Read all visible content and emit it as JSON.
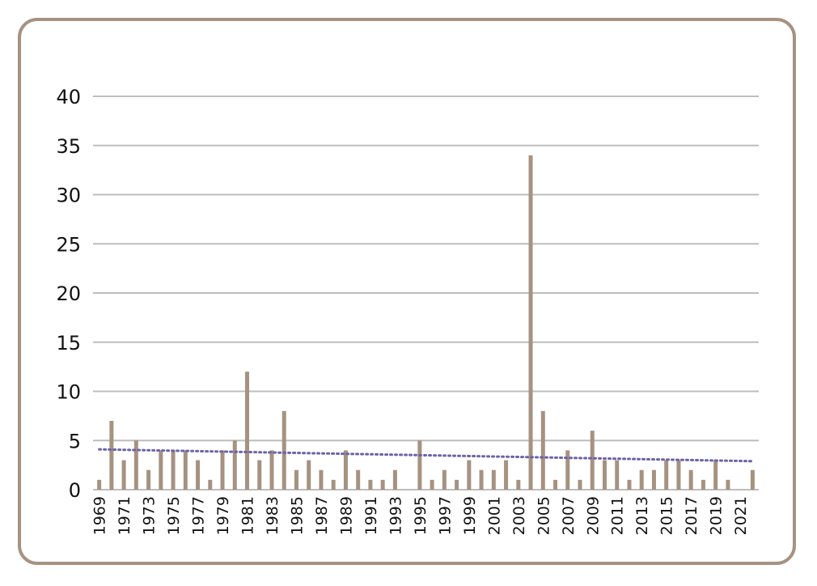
{
  "chart_data": {
    "type": "bar",
    "title": "",
    "xlabel": "",
    "ylabel": "",
    "ylim": [
      0,
      40
    ],
    "yticks": [
      0,
      5,
      10,
      15,
      20,
      25,
      30,
      35,
      40
    ],
    "grid": true,
    "legend": "none",
    "categories": [
      "1969",
      "1970",
      "1971",
      "1972",
      "1973",
      "1974",
      "1975",
      "1976",
      "1977",
      "1978",
      "1979",
      "1980",
      "1981",
      "1982",
      "1983",
      "1984",
      "1985",
      "1986",
      "1987",
      "1988",
      "1989",
      "1990",
      "1991",
      "1992",
      "1993",
      "1994",
      "1995",
      "1996",
      "1997",
      "1998",
      "1999",
      "2000",
      "2001",
      "2002",
      "2003",
      "2004",
      "2005",
      "2006",
      "2007",
      "2008",
      "2009",
      "2010",
      "2011",
      "2012",
      "2013",
      "2014",
      "2015",
      "2016",
      "2017",
      "2018",
      "2019",
      "2020",
      "2021",
      "2022"
    ],
    "x_tick_labels": [
      "1969",
      "1971",
      "1973",
      "1975",
      "1977",
      "1979",
      "1981",
      "1983",
      "1985",
      "1987",
      "1989",
      "1991",
      "1993",
      "1995",
      "1997",
      "1999",
      "2001",
      "2003",
      "2005",
      "2007",
      "2009",
      "2011",
      "2013",
      "2015",
      "2017",
      "2019",
      "2021"
    ],
    "values": [
      1,
      7,
      3,
      5,
      2,
      4,
      4,
      4,
      3,
      1,
      4,
      5,
      12,
      3,
      4,
      8,
      2,
      3,
      2,
      1,
      4,
      2,
      1,
      1,
      2,
      0,
      5,
      1,
      2,
      1,
      3,
      2,
      2,
      3,
      1,
      34,
      8,
      1,
      4,
      1,
      6,
      3,
      3,
      1,
      2,
      2,
      3,
      3,
      2,
      1,
      3,
      1,
      0,
      2
    ],
    "trendline": {
      "type": "linear",
      "style": "dotted",
      "start": 4.1,
      "end": 2.9
    },
    "colors": {
      "bar": "#a69281",
      "trend": "#6b64a8",
      "grid": "#bdbdbd",
      "frame": "#a69281"
    }
  }
}
